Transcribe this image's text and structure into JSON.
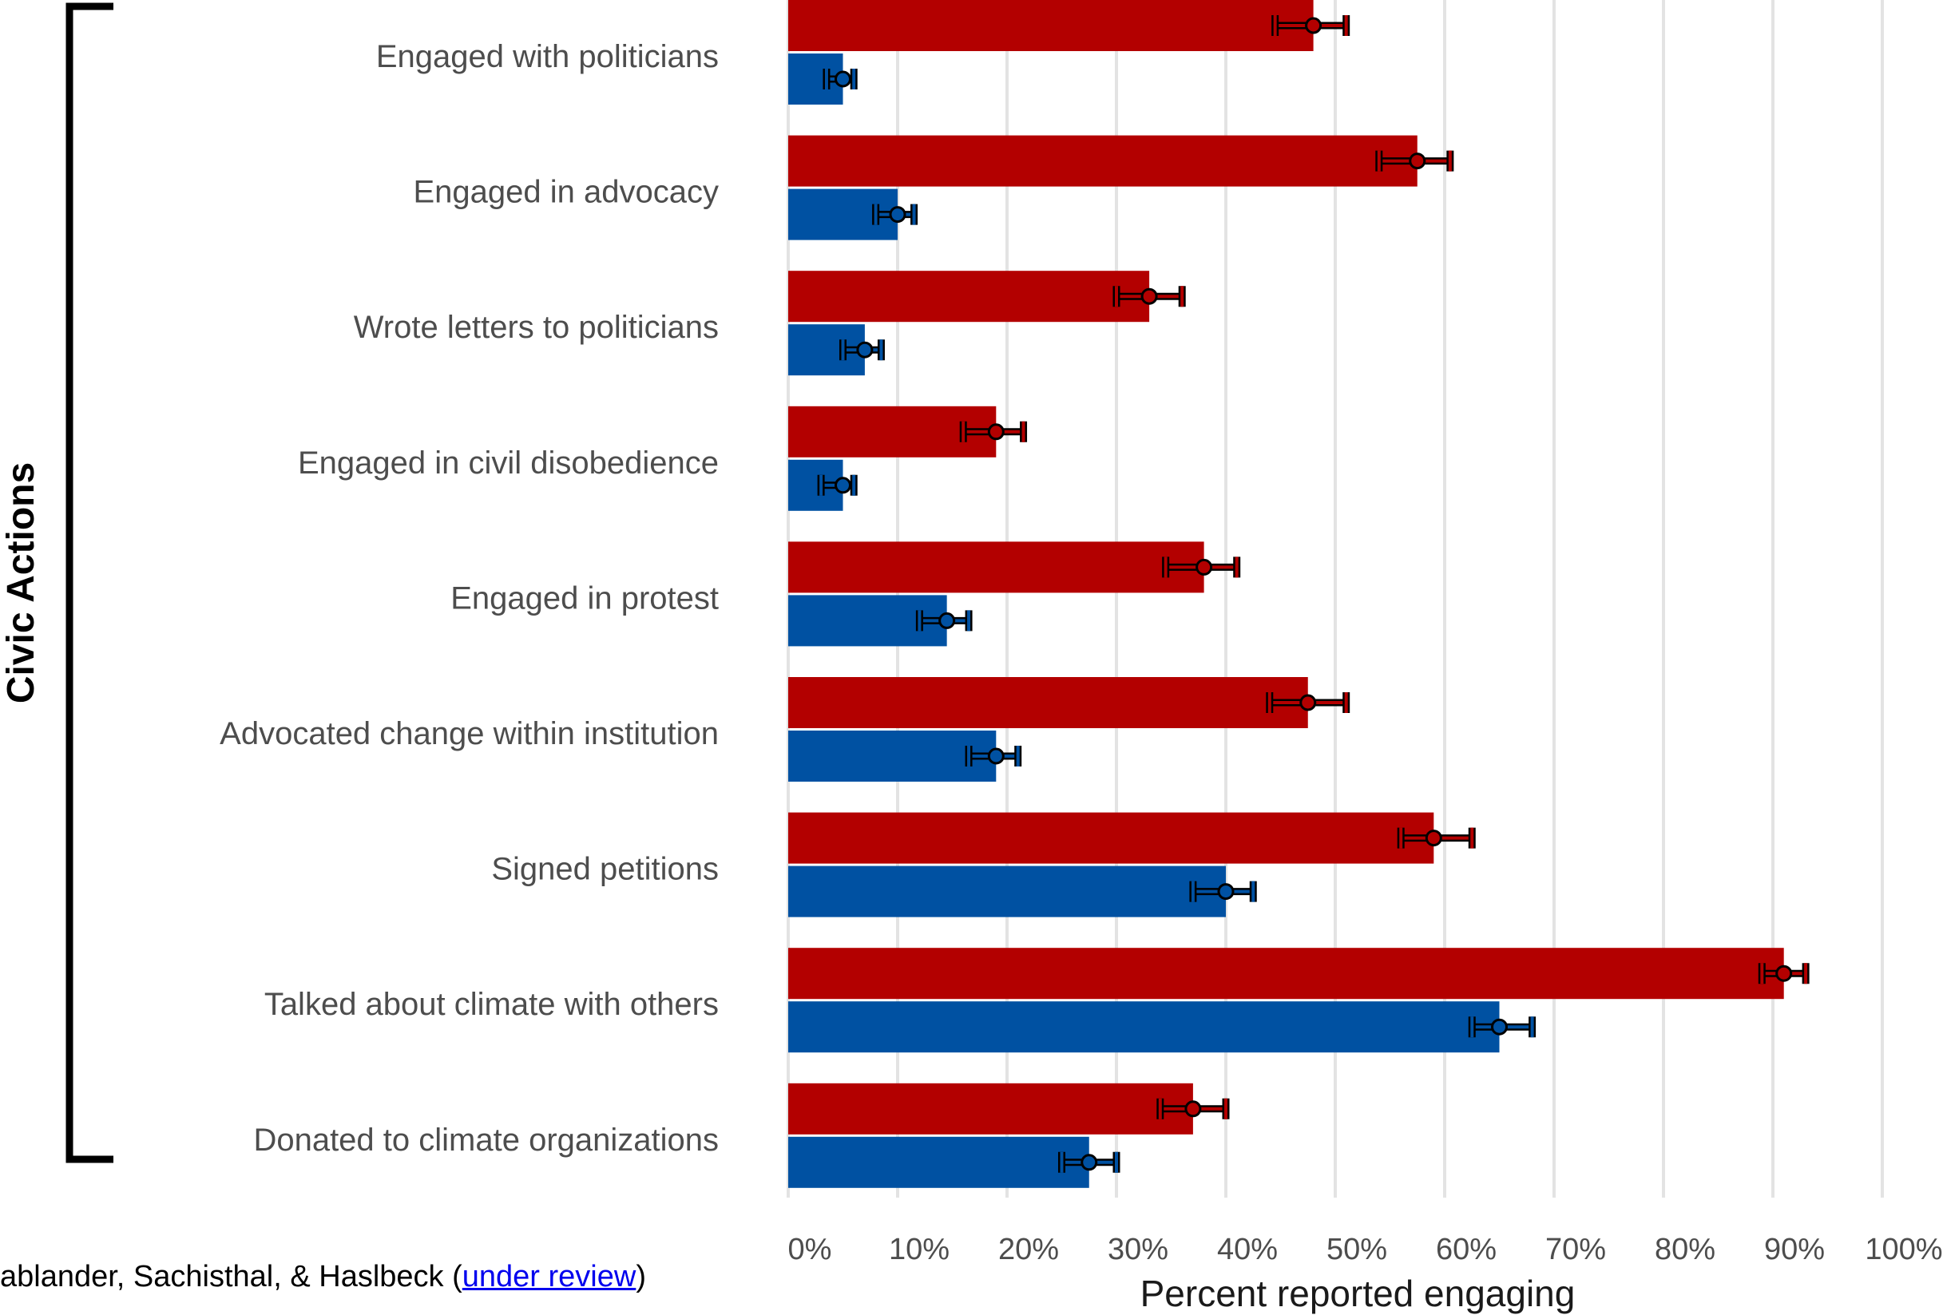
{
  "chart_data": {
    "type": "bar",
    "orientation": "horizontal",
    "group_label": "Civic Actions",
    "xlabel": "Percent reported engaging",
    "xlim": [
      0,
      100
    ],
    "x_ticks": [
      "0%",
      "10%",
      "20%",
      "30%",
      "40%",
      "50%",
      "60%",
      "70%",
      "80%",
      "90%",
      "100%"
    ],
    "grid": "vertical",
    "categories": [
      "Engaged with politicians",
      "Engaged in advocacy",
      "Wrote letters to politicians",
      "Engaged in civil disobedience",
      "Engaged in protest",
      "Advocated change within institution",
      "Signed petitions",
      "Talked about climate with others",
      "Donated to climate organizations"
    ],
    "series": [
      {
        "color": "#b30000",
        "values": [
          48,
          57.5,
          33,
          19,
          38,
          47.5,
          59,
          91,
          37
        ],
        "ci": [
          [
            44.5,
            51
          ],
          [
            54,
            60.5
          ],
          [
            30,
            36
          ],
          [
            16,
            21.5
          ],
          [
            34.5,
            41
          ],
          [
            44,
            51
          ],
          [
            56,
            62.5
          ],
          [
            89,
            93
          ],
          [
            34,
            40
          ]
        ]
      },
      {
        "color": "#0051a2",
        "values": [
          5,
          10,
          7,
          5,
          14.5,
          19,
          40,
          65,
          27.5
        ],
        "ci": [
          [
            3.5,
            6
          ],
          [
            8,
            11.5
          ],
          [
            5,
            8.5
          ],
          [
            3,
            6
          ],
          [
            12,
            16.5
          ],
          [
            16.5,
            21
          ],
          [
            37,
            42.5
          ],
          [
            62.5,
            68
          ],
          [
            25,
            30
          ]
        ]
      }
    ]
  },
  "citation": {
    "text": "ablander, Sachisthal, & Haslbeck (",
    "link": "under review",
    "suffix": ")"
  }
}
